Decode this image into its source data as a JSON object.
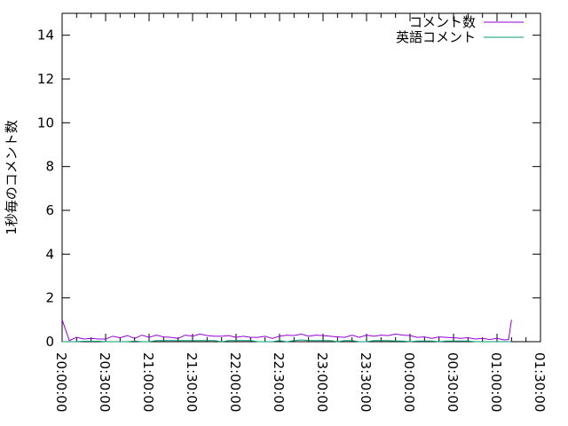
{
  "chart_data": {
    "type": "line",
    "title": "",
    "xlabel": "",
    "ylabel": "1秒毎のコメント数",
    "ylim": [
      0,
      15
    ],
    "yticks": [
      0,
      2,
      4,
      6,
      8,
      10,
      12,
      14
    ],
    "xlim": [
      "20:00:00",
      "01:30:00"
    ],
    "xticks": [
      "20:00:00",
      "20:30:00",
      "21:00:00",
      "21:30:00",
      "22:00:00",
      "22:30:00",
      "23:00:00",
      "23:30:00",
      "00:00:00",
      "00:30:00",
      "01:00:00",
      "01:30:00"
    ],
    "grid": false,
    "legend_position": "top-right",
    "x": [
      "20:00",
      "20:05",
      "20:10",
      "20:15",
      "20:20",
      "20:25",
      "20:30",
      "20:35",
      "20:40",
      "20:45",
      "20:50",
      "20:55",
      "21:00",
      "21:05",
      "21:10",
      "21:15",
      "21:20",
      "21:25",
      "21:30",
      "21:35",
      "21:40",
      "21:45",
      "21:50",
      "21:55",
      "22:00",
      "22:05",
      "22:10",
      "22:15",
      "22:20",
      "22:25",
      "22:30",
      "22:35",
      "22:40",
      "22:45",
      "22:50",
      "22:55",
      "23:00",
      "23:05",
      "23:10",
      "23:15",
      "23:20",
      "23:25",
      "23:30",
      "23:35",
      "23:40",
      "23:45",
      "23:50",
      "23:55",
      "00:00",
      "00:05",
      "00:10",
      "00:15",
      "00:20",
      "00:25",
      "00:30",
      "00:35",
      "00:40",
      "00:45",
      "00:50",
      "00:55",
      "01:00",
      "01:05",
      "01:08",
      "01:10"
    ],
    "series": [
      {
        "name": "コメント数",
        "color": "#9400d3",
        "values": [
          1.0,
          0.05,
          0.2,
          0.12,
          0.15,
          0.12,
          0.12,
          0.25,
          0.18,
          0.28,
          0.15,
          0.3,
          0.2,
          0.3,
          0.22,
          0.2,
          0.15,
          0.3,
          0.25,
          0.35,
          0.28,
          0.25,
          0.25,
          0.28,
          0.2,
          0.25,
          0.2,
          0.2,
          0.25,
          0.15,
          0.25,
          0.3,
          0.28,
          0.35,
          0.25,
          0.3,
          0.28,
          0.25,
          0.22,
          0.2,
          0.3,
          0.2,
          0.3,
          0.25,
          0.3,
          0.28,
          0.35,
          0.3,
          0.28,
          0.2,
          0.22,
          0.15,
          0.22,
          0.2,
          0.18,
          0.15,
          0.18,
          0.12,
          0.15,
          0.1,
          0.15,
          0.08,
          0.1,
          1.0
        ]
      },
      {
        "name": "英語コメント",
        "color": "#009e73",
        "values": [
          0,
          0,
          0,
          0.02,
          0.02,
          0.02,
          0,
          0,
          0,
          0,
          0.03,
          0,
          0,
          0.05,
          0.05,
          0.05,
          0.05,
          0.05,
          0.05,
          0.05,
          0.05,
          0.05,
          0,
          0.05,
          0.05,
          0.05,
          0.05,
          0,
          0,
          0,
          0.05,
          0,
          0.05,
          0.08,
          0.05,
          0.05,
          0.05,
          0.05,
          0,
          0.05,
          0.05,
          0,
          0,
          0.05,
          0.05,
          0.05,
          0.03,
          0.03,
          0,
          0.03,
          0.03,
          0.03,
          0,
          0.03,
          0.03,
          0.03,
          0.03,
          0,
          0,
          0,
          0,
          0,
          0,
          0
        ]
      }
    ]
  }
}
